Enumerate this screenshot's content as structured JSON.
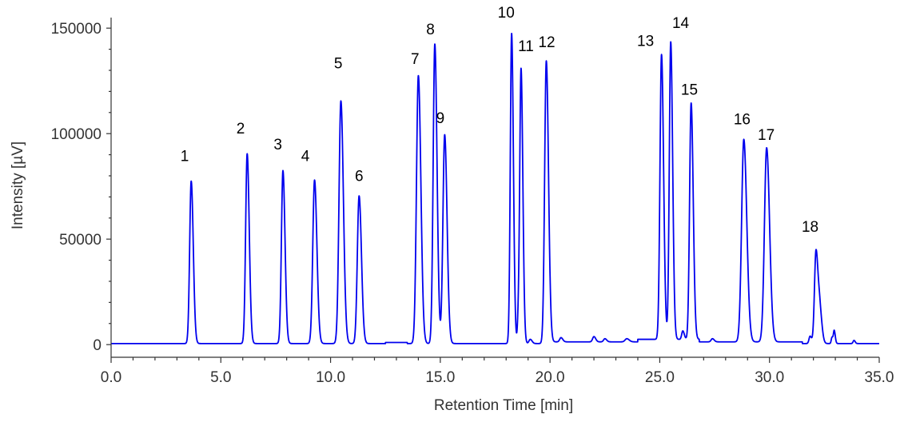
{
  "chart_data": {
    "type": "line",
    "title": "",
    "xlabel": "Retention Time [min]",
    "ylabel": "Intensity [µV]",
    "xlim": [
      0,
      35
    ],
    "ylim": [
      -6000,
      155000
    ],
    "x_ticks": [
      0,
      5,
      10,
      15,
      20,
      25,
      30,
      35
    ],
    "x_tick_labels": [
      "0.0",
      "5.0",
      "10.0",
      "15.0",
      "20.0",
      "25.0",
      "30.0",
      "35.0"
    ],
    "y_ticks": [
      0,
      50000,
      100000,
      150000
    ],
    "y_tick_labels": [
      "0",
      "50000",
      "100000",
      "150000"
    ],
    "grid": false,
    "legend": "none",
    "line_color": "#0000ee",
    "baseline": 500,
    "peaks": [
      {
        "label": "1",
        "x": 3.65,
        "y": 77000,
        "width": 0.07
      },
      {
        "label": "2",
        "x": 6.2,
        "y": 90000,
        "width": 0.07
      },
      {
        "label": "3",
        "x": 7.83,
        "y": 82000,
        "width": 0.07
      },
      {
        "label": "4",
        "x": 9.27,
        "y": 77500,
        "width": 0.08
      },
      {
        "label": "5",
        "x": 10.47,
        "y": 115000,
        "width": 0.085
      },
      {
        "label": "6",
        "x": 11.3,
        "y": 70000,
        "width": 0.08
      },
      {
        "label": "7",
        "x": 14.0,
        "y": 127000,
        "width": 0.085
      },
      {
        "label": "8",
        "x": 14.75,
        "y": 142000,
        "width": 0.075
      },
      {
        "label": "9",
        "x": 15.2,
        "y": 99000,
        "width": 0.08
      },
      {
        "label": "10",
        "x": 18.25,
        "y": 147000,
        "width": 0.06
      },
      {
        "label": "11",
        "x": 18.68,
        "y": 130000,
        "width": 0.06
      },
      {
        "label": "12",
        "x": 19.83,
        "y": 134000,
        "width": 0.075
      },
      {
        "label": "13",
        "x": 25.08,
        "y": 135000,
        "width": 0.07
      },
      {
        "label": "14",
        "x": 25.5,
        "y": 141000,
        "width": 0.065
      },
      {
        "label": "15",
        "x": 26.43,
        "y": 112000,
        "width": 0.07
      },
      {
        "label": "16",
        "x": 28.83,
        "y": 96000,
        "width": 0.1
      },
      {
        "label": "17",
        "x": 29.87,
        "y": 92000,
        "width": 0.1
      },
      {
        "label": "18",
        "x": 32.12,
        "y": 44000,
        "width": 0.07
      }
    ],
    "minor_peaks": [
      {
        "x": 18.55,
        "y": 9000,
        "width": 0.04
      },
      {
        "x": 19.1,
        "y": 2000,
        "width": 0.06
      },
      {
        "x": 20.5,
        "y": 2000,
        "width": 0.06
      },
      {
        "x": 22.0,
        "y": 2500,
        "width": 0.06
      },
      {
        "x": 22.5,
        "y": 1500,
        "width": 0.06
      },
      {
        "x": 23.5,
        "y": 1500,
        "width": 0.08
      },
      {
        "x": 26.05,
        "y": 4000,
        "width": 0.05
      },
      {
        "x": 27.4,
        "y": 1500,
        "width": 0.06
      },
      {
        "x": 31.85,
        "y": 3500,
        "width": 0.05
      },
      {
        "x": 32.3,
        "y": 14000,
        "width": 0.07
      },
      {
        "x": 32.95,
        "y": 6000,
        "width": 0.035
      },
      {
        "x": 32.85,
        "y": 3000,
        "width": 0.035
      },
      {
        "x": 33.85,
        "y": 1500,
        "width": 0.04
      }
    ],
    "label_positions": [
      {
        "label": "1",
        "x": 3.35,
        "y": 87000
      },
      {
        "label": "2",
        "x": 5.9,
        "y": 100000
      },
      {
        "label": "3",
        "x": 7.6,
        "y": 92500
      },
      {
        "label": "4",
        "x": 8.85,
        "y": 87000
      },
      {
        "label": "5",
        "x": 10.35,
        "y": 131000
      },
      {
        "label": "6",
        "x": 11.3,
        "y": 77500
      },
      {
        "label": "7",
        "x": 13.85,
        "y": 133000
      },
      {
        "label": "8",
        "x": 14.55,
        "y": 147000
      },
      {
        "label": "9",
        "x": 15.0,
        "y": 105000
      },
      {
        "label": "10",
        "x": 18.0,
        "y": 155000
      },
      {
        "label": "11",
        "x": 18.9,
        "y": 139000
      },
      {
        "label": "12",
        "x": 19.85,
        "y": 141000
      },
      {
        "label": "13",
        "x": 24.35,
        "y": 141500
      },
      {
        "label": "14",
        "x": 25.95,
        "y": 150000
      },
      {
        "label": "15",
        "x": 26.35,
        "y": 118500
      },
      {
        "label": "16",
        "x": 28.75,
        "y": 104500
      },
      {
        "label": "17",
        "x": 29.85,
        "y": 97000
      },
      {
        "label": "18",
        "x": 31.85,
        "y": 53500
      }
    ]
  }
}
